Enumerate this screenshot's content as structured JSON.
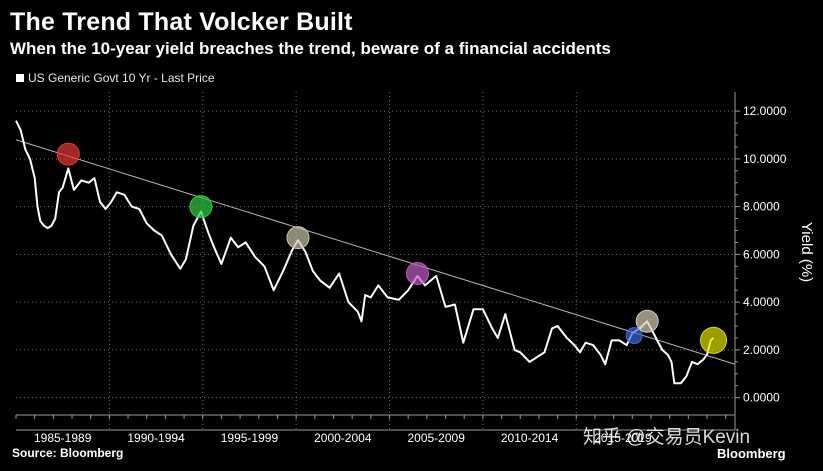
{
  "title": "The Trend That Volcker Built",
  "subtitle": "When the 10-year yield breaches the trend, beware of a financial accidents",
  "legend_label": "US Generic Govt 10 Yr - Last Price",
  "source": "Source: Bloomberg",
  "brand": "Bloomberg",
  "watermark": "知乎 @交易员Kevin",
  "colors": {
    "background": "#000000",
    "line": "#ffffff",
    "trend": "#b4b4b4",
    "grid": "#6e6e6e",
    "text": "#ffffff"
  },
  "chart_data": {
    "type": "line",
    "title": "The Trend That Volcker Built",
    "subtitle": "When the 10-year yield breaches the trend, beware of a financial accidents",
    "ylabel": "Yield (%)",
    "ylim": [
      -0.6,
      12.8
    ],
    "yticks": [
      0,
      2,
      4,
      6,
      8,
      10,
      12
    ],
    "ytick_labels": [
      "0.0000",
      "2.0000",
      "4.0000",
      "6.0000",
      "8.0000",
      "10.0000",
      "12.0000"
    ],
    "xlim": [
      1985,
      2023.5
    ],
    "x_categories": [
      "1985-1989",
      "1990-1994",
      "1995-1999",
      "2000-2004",
      "2005-2009",
      "2010-2014",
      "2015-2019"
    ],
    "grid": true,
    "legend_position": "top-left",
    "series": [
      {
        "name": "US Generic Govt 10 Yr - Last Price",
        "x": [
          1985.0,
          1985.25,
          1985.5,
          1985.75,
          1986.0,
          1986.15,
          1986.3,
          1986.5,
          1986.7,
          1986.9,
          1987.1,
          1987.3,
          1987.5,
          1987.8,
          1988.1,
          1988.5,
          1988.9,
          1989.2,
          1989.5,
          1989.8,
          1990.1,
          1990.4,
          1990.8,
          1991.2,
          1991.6,
          1992.0,
          1992.4,
          1992.8,
          1993.3,
          1993.8,
          1994.1,
          1994.5,
          1994.9,
          1995.3,
          1995.6,
          1996.0,
          1996.5,
          1996.9,
          1997.3,
          1997.8,
          1998.3,
          1998.8,
          1999.3,
          1999.8,
          2000.1,
          2000.5,
          2000.9,
          2001.3,
          2001.8,
          2002.3,
          2002.8,
          2003.3,
          2003.5,
          2003.7,
          2004.0,
          2004.4,
          2004.9,
          2005.5,
          2006.0,
          2006.5,
          2006.9,
          2007.5,
          2008.0,
          2008.5,
          2008.95,
          2009.3,
          2009.5,
          2010.0,
          2010.5,
          2010.8,
          2011.2,
          2011.7,
          2012.0,
          2012.5,
          2012.9,
          2013.3,
          2013.7,
          2014.0,
          2014.5,
          2014.9,
          2015.2,
          2015.5,
          2015.9,
          2016.3,
          2016.55,
          2016.9,
          2017.3,
          2017.7,
          2018.0,
          2018.4,
          2018.8,
          2019.2,
          2019.6,
          2019.9,
          2020.1,
          2020.25,
          2020.6,
          2020.9,
          2021.2,
          2021.5,
          2021.8,
          2022.0,
          2022.2,
          2022.35
        ],
        "y": [
          11.6,
          11.2,
          10.4,
          10.0,
          9.2,
          8.0,
          7.4,
          7.2,
          7.1,
          7.2,
          7.5,
          8.6,
          8.8,
          9.6,
          8.7,
          9.1,
          9.0,
          9.2,
          8.2,
          7.9,
          8.2,
          8.6,
          8.5,
          8.0,
          7.9,
          7.3,
          7.0,
          6.8,
          6.0,
          5.4,
          5.8,
          7.2,
          7.8,
          6.9,
          6.3,
          5.6,
          6.7,
          6.3,
          6.5,
          5.9,
          5.5,
          4.5,
          5.3,
          6.2,
          6.6,
          6.1,
          5.3,
          4.9,
          4.6,
          5.2,
          4.0,
          3.6,
          3.2,
          4.3,
          4.2,
          4.7,
          4.2,
          4.1,
          4.5,
          5.1,
          4.7,
          5.1,
          3.8,
          3.9,
          2.3,
          3.2,
          3.7,
          3.7,
          2.9,
          2.5,
          3.5,
          2.0,
          1.9,
          1.5,
          1.7,
          1.9,
          2.9,
          3.0,
          2.5,
          2.2,
          1.9,
          2.3,
          2.2,
          1.8,
          1.4,
          2.4,
          2.4,
          2.2,
          2.7,
          2.9,
          3.2,
          2.6,
          2.0,
          1.8,
          1.5,
          0.6,
          0.6,
          0.9,
          1.5,
          1.4,
          1.6,
          1.8,
          2.4,
          2.5
        ]
      }
    ],
    "trend_line": {
      "x": [
        1985.0,
        2023.5
      ],
      "y": [
        10.8,
        1.4
      ]
    },
    "markers": [
      {
        "x": 1987.8,
        "y": 10.2,
        "color": "#e53935"
      },
      {
        "x": 1994.9,
        "y": 8.0,
        "color": "#2ecc40"
      },
      {
        "x": 2000.1,
        "y": 6.7,
        "color": "#c8c4a8"
      },
      {
        "x": 2006.5,
        "y": 5.2,
        "color": "#c25bc2"
      },
      {
        "x": 2018.1,
        "y": 2.6,
        "color": "#3a66d8"
      },
      {
        "x": 2018.8,
        "y": 3.2,
        "color": "#d4cfb5"
      },
      {
        "x": 2022.35,
        "y": 2.4,
        "color": "#e0e000"
      }
    ]
  }
}
